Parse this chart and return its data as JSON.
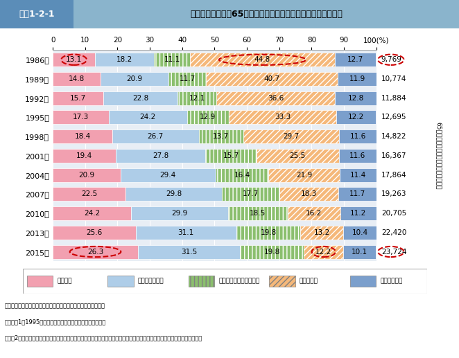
{
  "header_label": "図表1-2-1",
  "title": "世帯構造別に見た65歳以上の者のいる世帯数の構成割合の推移",
  "years": [
    "1986年",
    "1989年",
    "1992年",
    "1995年",
    "1998年",
    "2001年",
    "2004年",
    "2007年",
    "2010年",
    "2013年",
    "2015年"
  ],
  "totals": [
    "9,769",
    "10,774",
    "11,884",
    "12,695",
    "14,822",
    "16,367",
    "17,864",
    "19,263",
    "20,705",
    "22,420",
    "23,724"
  ],
  "categories": [
    "単独世帯",
    "夫婦のみの世帯",
    "親と未婚の子のみの世帯",
    "三世代世帯",
    "その他の世帯"
  ],
  "data": [
    [
      13.1,
      14.8,
      15.7,
      17.3,
      18.4,
      19.4,
      20.9,
      22.5,
      24.2,
      25.6,
      26.3
    ],
    [
      18.2,
      20.9,
      22.8,
      24.2,
      26.7,
      27.8,
      29.4,
      29.8,
      29.9,
      31.1,
      31.5
    ],
    [
      11.1,
      11.7,
      12.1,
      12.9,
      13.7,
      15.7,
      16.4,
      17.7,
      18.5,
      19.8,
      19.8
    ],
    [
      44.8,
      40.7,
      36.6,
      33.3,
      29.7,
      25.5,
      21.9,
      18.3,
      16.2,
      13.2,
      12.2
    ],
    [
      12.7,
      11.9,
      12.8,
      12.2,
      11.6,
      11.6,
      11.4,
      11.7,
      11.2,
      10.4,
      10.1
    ]
  ],
  "colors": [
    "#F2A0B0",
    "#AECDE8",
    "#8BBF6E",
    "#F5B87A",
    "#7B9FCC"
  ],
  "hatches": [
    "",
    "",
    "|||",
    "////",
    "==="
  ],
  "circled_cells": [
    [
      0,
      0
    ],
    [
      0,
      3
    ],
    [
      10,
      0
    ],
    [
      10,
      3
    ]
  ],
  "circled_totals_idx": [
    0,
    10
  ],
  "legend_labels": [
    "単独世帯",
    "夫婦のみの世帯",
    "親と未婚の子のみの世帯",
    "三世代世帯",
    "その他の世帯"
  ],
  "right_label": "65歳以上の者のいる世帯数（千世帯）",
  "note1": "資料：厘生労働省政策統括官付世帯統計室「国民生活基礎調査」",
  "note2": "（注）　1．1995年の数値は、兵庫県を除いたものである。",
  "note3": "　　　2．「親と未婚の子のみの世帯」とは、「夫婦と未婚の子のみの世帯」及び「ひとり親と未婚の子のみの世帯」をいう。",
  "bg_color": "#E8EEF5",
  "header_bg": "#5080A8",
  "title_bg": "#7AAAC8"
}
